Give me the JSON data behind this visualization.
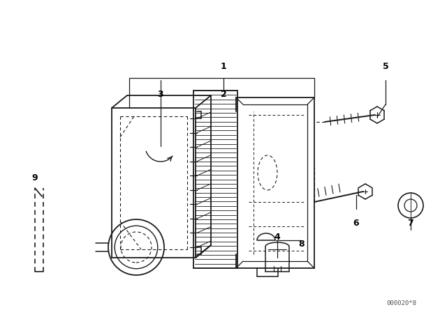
{
  "bg_color": "#ffffff",
  "line_color": "#1a1a1a",
  "fig_width": 6.4,
  "fig_height": 4.48,
  "dpi": 100,
  "watermark": "000020*8"
}
